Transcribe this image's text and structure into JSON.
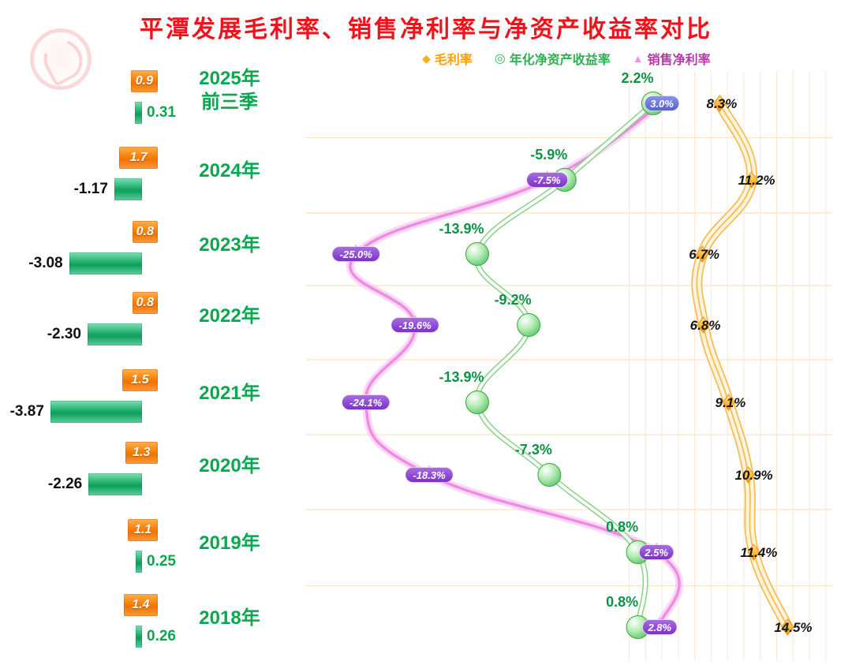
{
  "title": "平潭发展毛利率、销售净利率与净资产收益率对比",
  "legend": [
    {
      "label": "毛利率",
      "marker": "diamond",
      "color": "#ff9d00"
    },
    {
      "label": "年化净资产收益率",
      "marker": "circle",
      "color": "#2fae54"
    },
    {
      "label": "销售净利率",
      "marker": "triangle",
      "color": "#b23aa6"
    }
  ],
  "years": [
    {
      "label": "2025年",
      "sublabel": "前三季"
    },
    {
      "label": "2024年",
      "sublabel": ""
    },
    {
      "label": "2023年",
      "sublabel": ""
    },
    {
      "label": "2022年",
      "sublabel": ""
    },
    {
      "label": "2021年",
      "sublabel": ""
    },
    {
      "label": "2020年",
      "sublabel": ""
    },
    {
      "label": "2019年",
      "sublabel": ""
    },
    {
      "label": "2018年",
      "sublabel": ""
    }
  ],
  "chart_data": {
    "type": "line",
    "title": "平潭发展毛利率、销售净利率与净资产收益率对比",
    "time_axis": "vertical",
    "unit": "%",
    "grid": true,
    "legend_position": "top",
    "value_axis_range_hint": [
      -27,
      18
    ],
    "categories": [
      "2025年前三季",
      "2024年",
      "2023年",
      "2022年",
      "2021年",
      "2020年",
      "2019年",
      "2018年"
    ],
    "series": [
      {
        "name": "毛利率",
        "marker": "diamond",
        "color": "#ffbf57",
        "values": [
          8.3,
          11.2,
          6.7,
          6.8,
          9.1,
          10.9,
          11.4,
          14.5
        ],
        "labels": [
          "8.3%",
          "11.2%",
          "6.7%",
          "6.8%",
          "9.1%",
          "10.9%",
          "11.4%",
          "14.5%"
        ]
      },
      {
        "name": "年化净资产收益率",
        "marker": "circle",
        "color": "#7ccf7c",
        "values": [
          2.2,
          -5.9,
          -13.9,
          -9.2,
          -13.9,
          -7.3,
          0.8,
          0.8
        ],
        "labels": [
          "2.2%",
          "-5.9%",
          "-13.9%",
          "-9.2%",
          "-13.9%",
          "-7.3%",
          "0.8%",
          "0.8%"
        ]
      },
      {
        "name": "销售净利率",
        "marker": "triangle",
        "color": "#ef8ce2",
        "values": [
          3.0,
          -7.5,
          -25.0,
          -19.6,
          -24.1,
          -18.3,
          2.5,
          2.8
        ],
        "labels": [
          "3.0%",
          "-7.5%",
          "-25.0%",
          "-19.6%",
          "-24.1%",
          "-18.3%",
          "2.5%",
          "2.8%"
        ]
      }
    ],
    "bar_series": [
      {
        "name": "orange-bar",
        "color": "#f57f00",
        "values": [
          0.9,
          1.7,
          0.8,
          0.8,
          1.5,
          1.3,
          1.1,
          1.4
        ],
        "labels": [
          "0.9",
          "1.7",
          "0.8",
          "0.8",
          "1.5",
          "1.3",
          "1.1",
          "1.4"
        ]
      },
      {
        "name": "green-bar",
        "color": "#17a864",
        "values": [
          0.31,
          -1.17,
          -3.08,
          -2.3,
          -3.87,
          -2.26,
          0.25,
          0.26
        ],
        "labels": [
          "0.31",
          "-1.17",
          "-3.08",
          "-2.30",
          "-3.87",
          "-2.26",
          "0.25",
          "0.26"
        ]
      }
    ]
  },
  "colors": {
    "title": "#f2121c",
    "year_label": "#09a84e",
    "badge": "#7c2fc8",
    "badge_first": "#5560cf",
    "grid": "#ffe2c4",
    "gross_label": "#141414",
    "roe_label": "#0b9444"
  }
}
